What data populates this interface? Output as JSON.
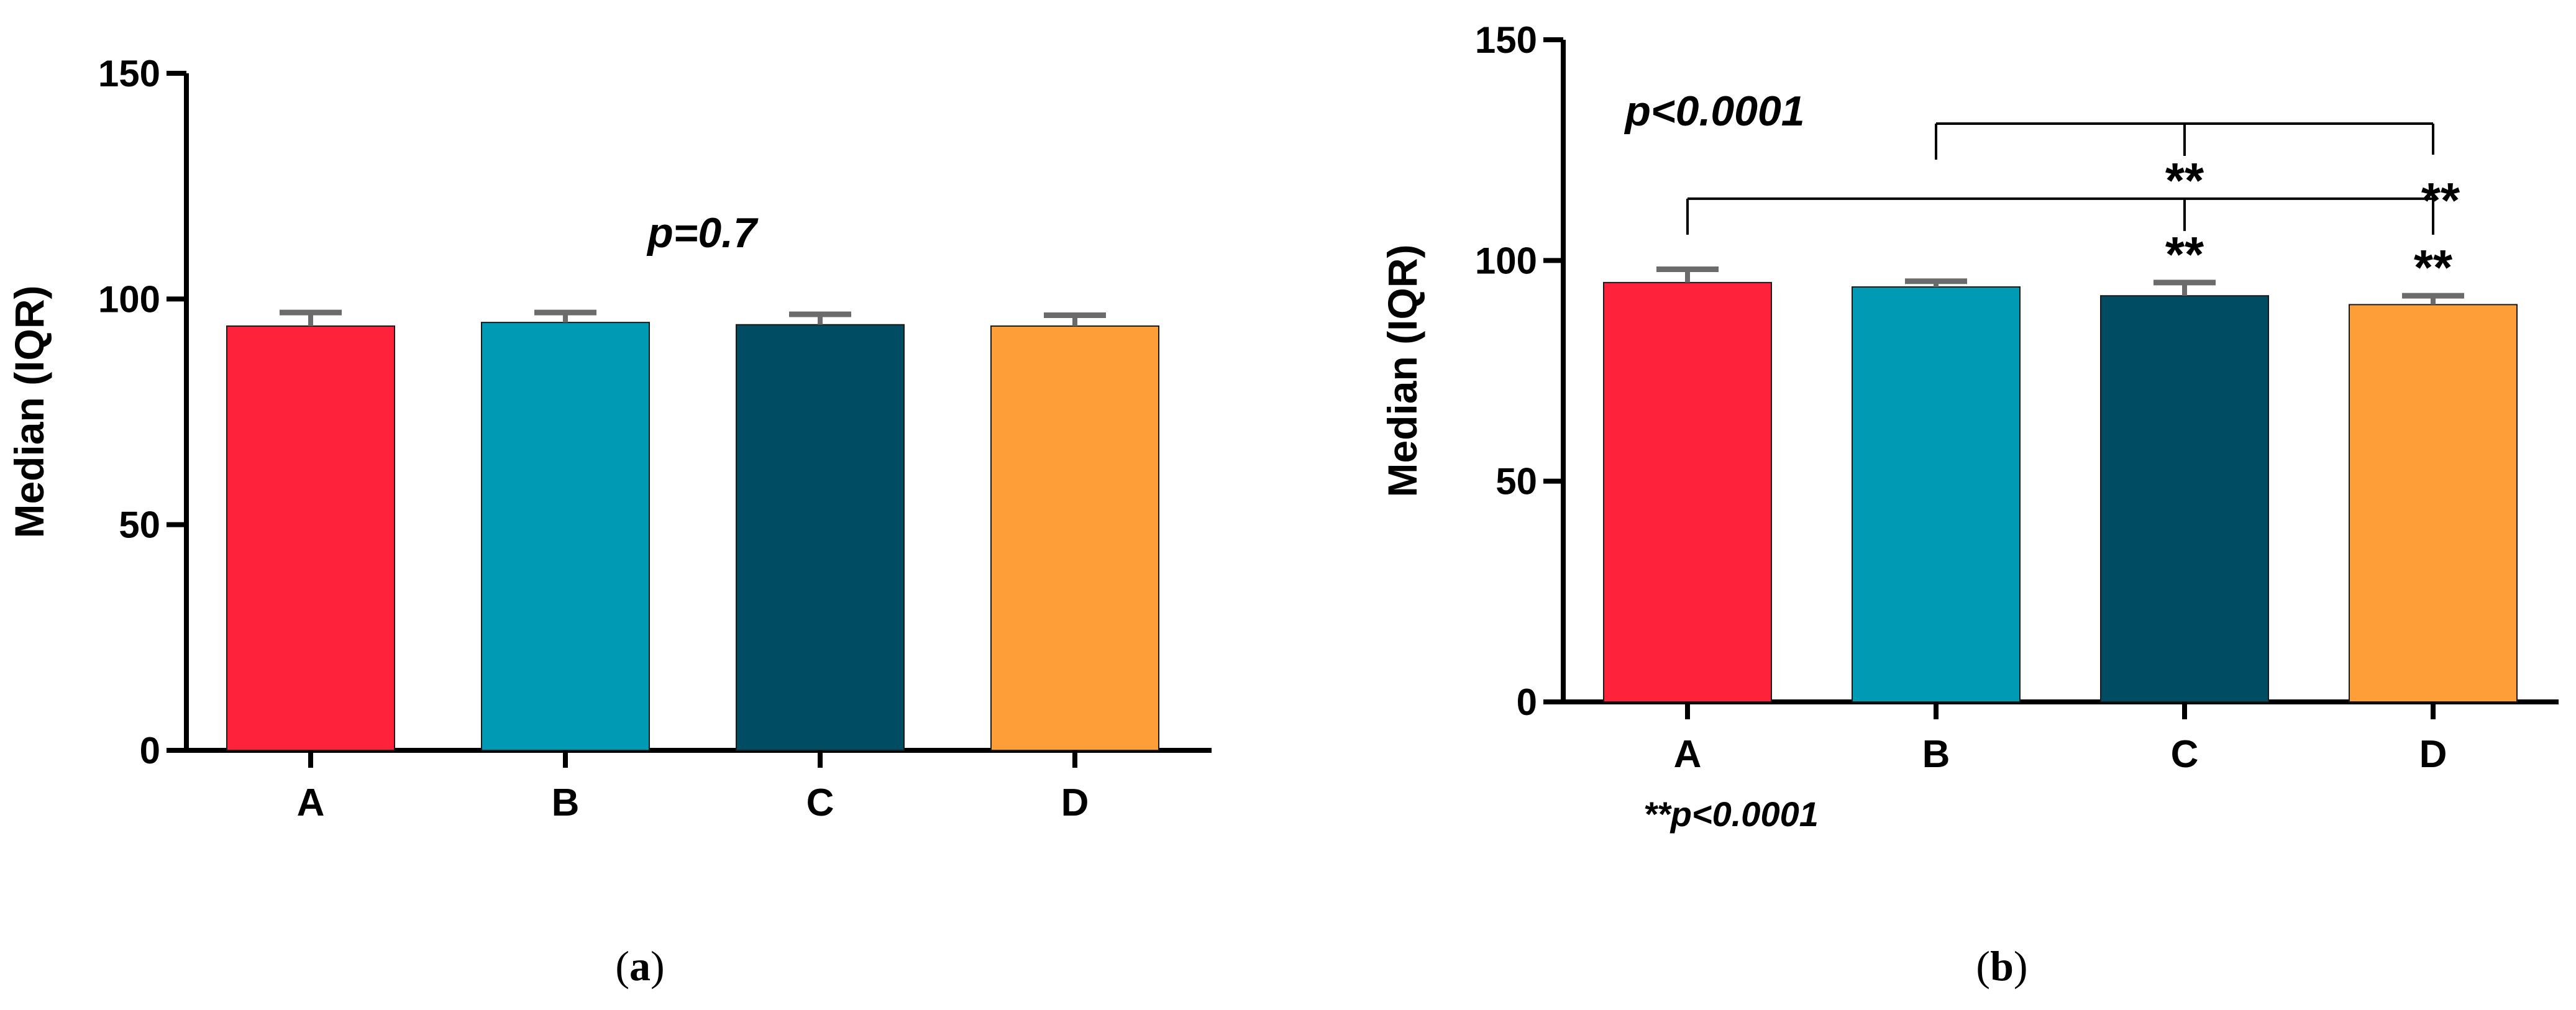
{
  "colors": {
    "A": "#fe233a",
    "B": "#009ab4",
    "C": "#004d63",
    "D": "#fd9f36",
    "error_bar": "#6b6b6b",
    "axis": "#000000"
  },
  "chart_data": [
    {
      "type": "bar",
      "panel": "a",
      "caption_label": "a",
      "categories": [
        "A",
        "B",
        "C",
        "D"
      ],
      "values": [
        94,
        94.8,
        94.3,
        94
      ],
      "error_upper": [
        97,
        97,
        96.6,
        96.4
      ],
      "ylabel": "Median (IQR)",
      "xlabel": "",
      "ylim": [
        0,
        150
      ],
      "yticks": [
        "0",
        "50",
        "100",
        "150"
      ],
      "annotation": "p=0.7"
    },
    {
      "type": "bar",
      "panel": "b",
      "caption_label": "b",
      "categories": [
        "A",
        "B",
        "C",
        "D"
      ],
      "values": [
        95,
        94,
        92,
        90
      ],
      "error_upper": [
        98,
        95.3,
        95,
        92
      ],
      "ylabel": "Median (IQR)",
      "xlabel": "",
      "ylim": [
        0,
        150
      ],
      "yticks": [
        "0",
        "50",
        "100",
        "150"
      ],
      "annotation": "p<0.0001",
      "bar_stars": [
        "",
        "",
        "**",
        "**"
      ],
      "bracket_stars": "**",
      "brackets": [
        {
          "from": "A",
          "to": "D",
          "star_label": "**"
        },
        {
          "from": "B",
          "to": "D",
          "star_label": "**"
        }
      ],
      "footnote": "**p<0.0001"
    }
  ]
}
